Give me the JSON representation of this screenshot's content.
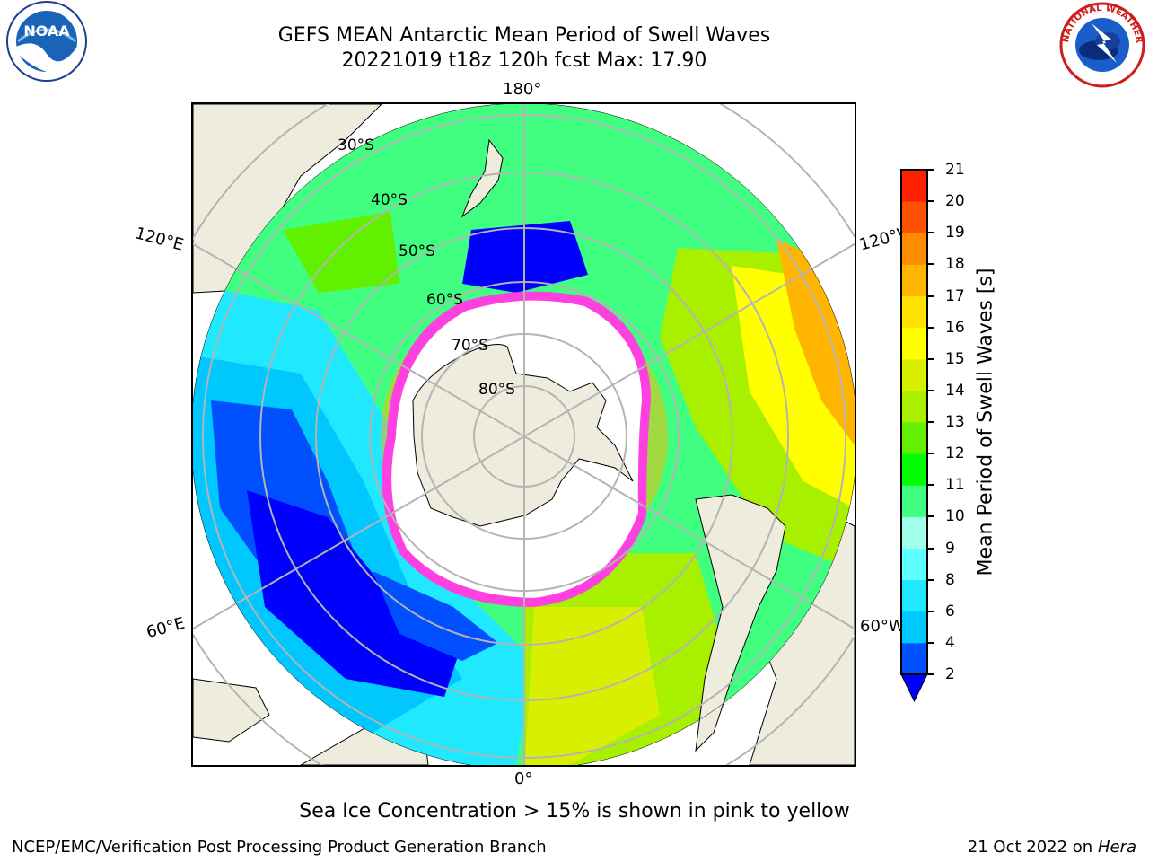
{
  "title": {
    "line1": "GEFS MEAN Antarctic Mean Period of Swell Waves",
    "line2": "20221019 t18z 120h fcst   Max: 17.90"
  },
  "logos": {
    "left": {
      "icon": "noaa-logo",
      "text": "NOAA"
    },
    "right": {
      "icon": "nws-logo",
      "text": "NATIONAL WEATHER SERVICE"
    }
  },
  "map": {
    "projection": "south-polar-stereographic",
    "meridian_labels": {
      "top": "180°",
      "bottom": "0°",
      "upper_left": "120°E",
      "upper_right": "120°W",
      "lower_left": "60°E",
      "lower_right": "60°W"
    },
    "parallel_labels": [
      "30°S",
      "40°S",
      "50°S",
      "60°S",
      "70°S",
      "80°S"
    ],
    "colors": {
      "land": "#eeecdd",
      "ice": "#ffffff",
      "grid": "#b4b4b4",
      "ice_edge": "#ff40e0"
    }
  },
  "colorbar": {
    "label": "Mean Period of Swell Waves [s]",
    "ticks": [
      "2",
      "4",
      "6",
      "8",
      "9",
      "10",
      "11",
      "12",
      "13",
      "14",
      "15",
      "16",
      "17",
      "18",
      "19",
      "20",
      "21"
    ],
    "colors": [
      "#0050ff",
      "#00c8ff",
      "#20e8ff",
      "#60ffff",
      "#a0ffe8",
      "#40ff80",
      "#00ff00",
      "#60f000",
      "#a8f000",
      "#d8f000",
      "#ffff00",
      "#ffe000",
      "#ffb400",
      "#ff8c00",
      "#ff5000",
      "#ff2000"
    ],
    "extend_color": "#0000ff"
  },
  "footnote": "Sea Ice Concentration > 15% is shown in pink to yellow",
  "credit": "NCEP/EMC/Verification Post Processing Product Generation Branch",
  "date_stamp": {
    "date": "21 Oct 2022 on",
    "host": "Hera"
  }
}
